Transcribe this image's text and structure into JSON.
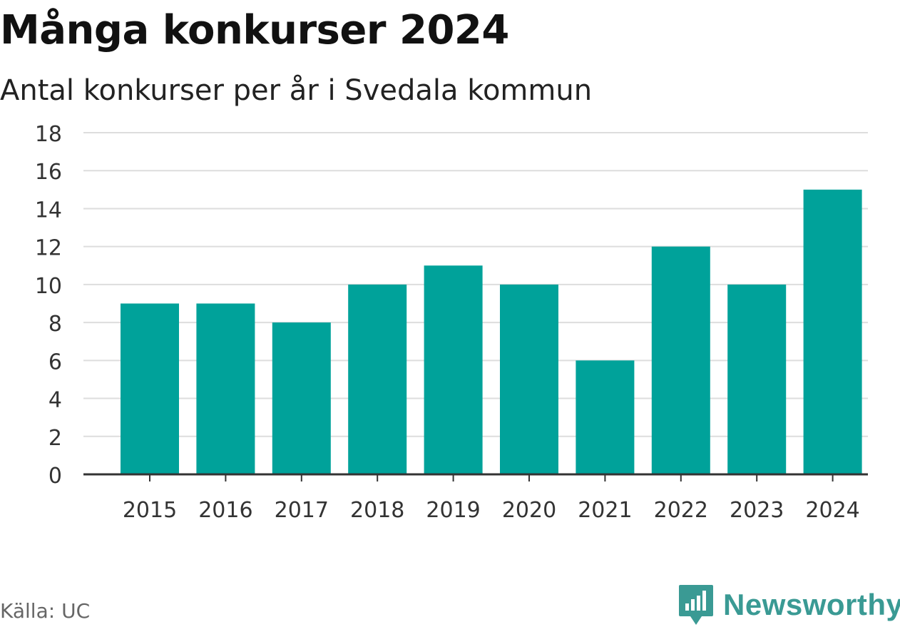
{
  "chart_data": {
    "type": "bar",
    "title": "Många konkurser 2024",
    "subtitle": "Antal konkurser per år i Svedala kommun",
    "categories": [
      "2015",
      "2016",
      "2017",
      "2018",
      "2019",
      "2020",
      "2021",
      "2022",
      "2023",
      "2024"
    ],
    "values": [
      9,
      9,
      8,
      10,
      11,
      10,
      6,
      12,
      10,
      15
    ],
    "ylim": [
      0,
      18
    ],
    "yticks": [
      0,
      2,
      4,
      6,
      8,
      10,
      12,
      14,
      16,
      18
    ],
    "grid": true,
    "bar_color": "#00a29a"
  },
  "footer": {
    "source": "Källa: UC",
    "brand": "Newsworthy",
    "brand_icon": "newsworthy-logo-icon",
    "brand_color": "#3a9a94"
  }
}
